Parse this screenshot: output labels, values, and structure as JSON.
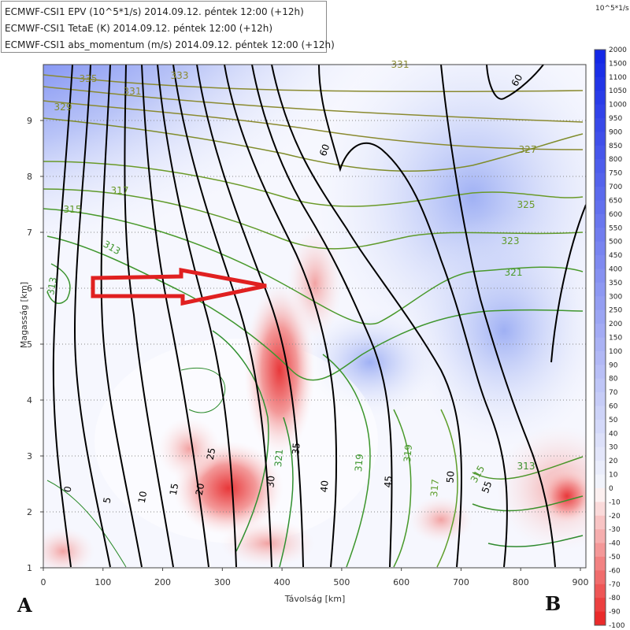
{
  "legend": {
    "lines": [
      "ECMWF-CSI1 EPV (10^5*1/s) 2014.09.12. péntek 12:00 (+12h)",
      "ECMWF-CSI1 TetaE (K) 2014.09.12. péntek 12:00 (+12h)",
      "ECMWF-CSI1 abs_momentum (m/s) 2014.09.12. péntek 12:00 (+12h)"
    ]
  },
  "colorbar": {
    "unit": "10^5*1/s",
    "labels": [
      "2000",
      "1500",
      "1100",
      "1050",
      "1000",
      "950",
      "900",
      "850",
      "800",
      "750",
      "700",
      "650",
      "600",
      "550",
      "500",
      "450",
      "400",
      "350",
      "300",
      "250",
      "200",
      "150",
      "100",
      "90",
      "80",
      "70",
      "60",
      "50",
      "40",
      "30",
      "20",
      "10",
      "0",
      "-10",
      "-20",
      "-30",
      "-40",
      "-50",
      "-60",
      "-70",
      "-80",
      "-90",
      "-100"
    ]
  },
  "corner_labels": {
    "left": "A",
    "right": "B"
  },
  "chart_data": {
    "type": "contour cross-section",
    "xlabel": "Távolság [km]",
    "ylabel": "Magasság [km]",
    "xlim": [
      0,
      900
    ],
    "ylim": [
      1,
      10
    ],
    "xticks": [
      "0",
      "100",
      "200",
      "300",
      "400",
      "500",
      "600",
      "700",
      "800",
      "900"
    ],
    "yticks": [
      "1",
      "2",
      "3",
      "4",
      "5",
      "6",
      "7",
      "8",
      "9"
    ],
    "grid": "horizontal dotted",
    "series": [
      {
        "name": "ECMWF-CSI1 EPV (10^5*1/s)",
        "kind": "filled"
      },
      {
        "name": "ECMWF-CSI1 TetaE (K)",
        "kind": "contour",
        "labels": [
          "313",
          "315",
          "317",
          "319",
          "321",
          "323",
          "325",
          "327",
          "329",
          "331",
          "333",
          "335"
        ]
      },
      {
        "name": "ECMWF-CSI1 abs_momentum (m/s)",
        "kind": "contour",
        "labels": [
          "0",
          "5",
          "10",
          "15",
          "20",
          "25",
          "30",
          "35",
          "40",
          "45",
          "50",
          "55",
          "60"
        ]
      }
    ],
    "annotation": "red arrow pointing right at about 6 km height"
  }
}
